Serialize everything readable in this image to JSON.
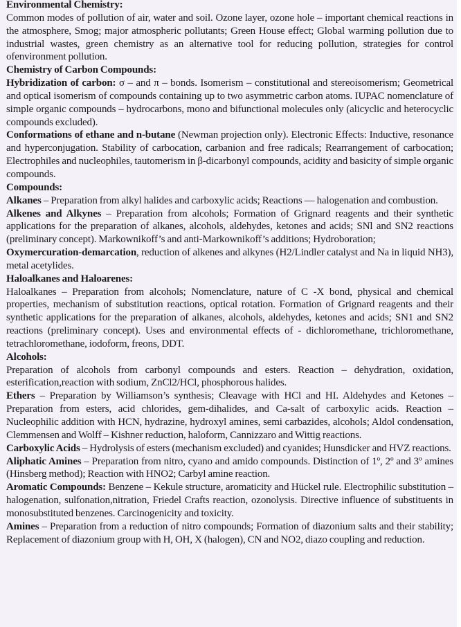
{
  "items": [
    {
      "heading": "Environmental Chemistry:"
    },
    {
      "text": "Common modes of pollution of air, water and soil. Ozone layer, ozone hole – important chemical reactions in the atmosphere, Smog; major atmospheric pollutants; Green House effect; Global warming pollution due to industrial wastes, green chemistry as an alternative tool for reducing pollution, strategies for control ofenvironment pollution."
    },
    {
      "heading": "Chemistry of Carbon Compounds:"
    },
    {
      "bold": "Hybridization of carbon:",
      "text": " σ – and π – bonds. Isomerism – constitutional and stereoisomerism; Geometrical and optical isomerism of compounds containing up to two asymmetric carbon atoms. IUPAC nomenclature of simple organic compounds – hydrocarbons, mono and bifunctional molecules only (alicyclic and heterocyclic compounds excluded)."
    },
    {
      "bold": "Conformations of ethane and n-butane",
      "text": " (Newman projection only). Electronic Effects: Inductive, resonance and hyperconjugation. Stability of carbocation, carbanion and free radicals; Rearrangement of carbocation; Electrophiles and nucleophiles, tautomerism in β-dicarbonyl compounds, acidity and basicity of simple organic compounds."
    },
    {
      "heading": "Compounds:"
    },
    {
      "bold": "Alkanes",
      "text": " – Preparation from alkyl halides and carboxylic acids; Reactions — halogenation and combustion."
    },
    {
      "bold": "Alkenes and Alkynes",
      "text": " – Preparation from alcohols; Formation of Grignard reagents and their synthetic applications for the preparation of alkanes, alcohols, aldehydes, ketones and acids; SNl and SN2 reactions (preliminary concept). Markownikoff’s and anti-Markownikoff’s additions; Hydroboration;"
    },
    {
      "bold": "Oxymercuration-demarcation",
      "text": ", reduction of alkenes and alkynes (H2/Lindler catalyst and Na in liquid NH3), metal acetylides."
    },
    {
      "heading": "Haloalkanes and Haloarenes:"
    },
    {
      "text": "Haloalkanes – Preparation from alcohols; Nomenclature, nature of C -X bond, physical and chemical properties, mechanism of substitution reactions, optical rotation. Formation of Grignard reagents and their synthetic applications for the preparation of alkanes, alcohols, aldehydes, ketones and acids; SN1 and SN2 reactions (preliminary concept). Uses and environmental effects of - dichloromethane, trichloromethane, tetrachloromethane, iodoform, freons, DDT."
    },
    {
      "heading": "Alcohols:"
    },
    {
      "text": "Preparation of alcohols from carbonyl compounds and esters. Reaction – dehydration, oxidation, esterification,reaction with sodium, ZnCl2/HCl, phosphorous halides."
    },
    {
      "bold": "Ethers",
      "text": " – Preparation by Williamson’s synthesis; Cleavage with HCl and HI. Aldehydes and Ketones – Preparation from esters, acid chlorides, gem-dihalides, and Ca-salt of carboxylic acids. Reaction – Nucleophilic addition with HCN, hydrazine, hydroxyl amines, semi carbazides, alcohols; Aldol condensation, Clemmensen and Wolff – Kishner reduction, haloform, Cannizzaro and Wittig reactions."
    },
    {
      "bold": "Carboxylic Acids",
      "text": " – Hydrolysis of esters (mechanism excluded) and cyanides; Hunsdicker and HVZ reactions."
    },
    {
      "bold": "Aliphatic Amines",
      "text": " – Preparation from nitro, cyano and amido compounds. Distinction of 1º, 2º and 3º amines (Hinsberg method); Reaction with HNO2; Carbyl amine reaction."
    },
    {
      "bold": "Aromatic Compounds:",
      "text": " Benzene – Kekule structure, aromaticity and Hückel rule. Electrophilic substitution – halogenation, sulfonation,nitration, Friedel Crafts reaction, ozonolysis. Directive influence of substituents in monosubstituted benzenes. Carcinogenicity and toxicity."
    },
    {
      "bold": "Amines",
      "text": " – Preparation from a reduction of nitro compounds; Formation of diazonium salts and their stability; Replacement of diazonium group with H, OH, X (halogen), CN and NO2, diazo coupling and reduction."
    }
  ]
}
